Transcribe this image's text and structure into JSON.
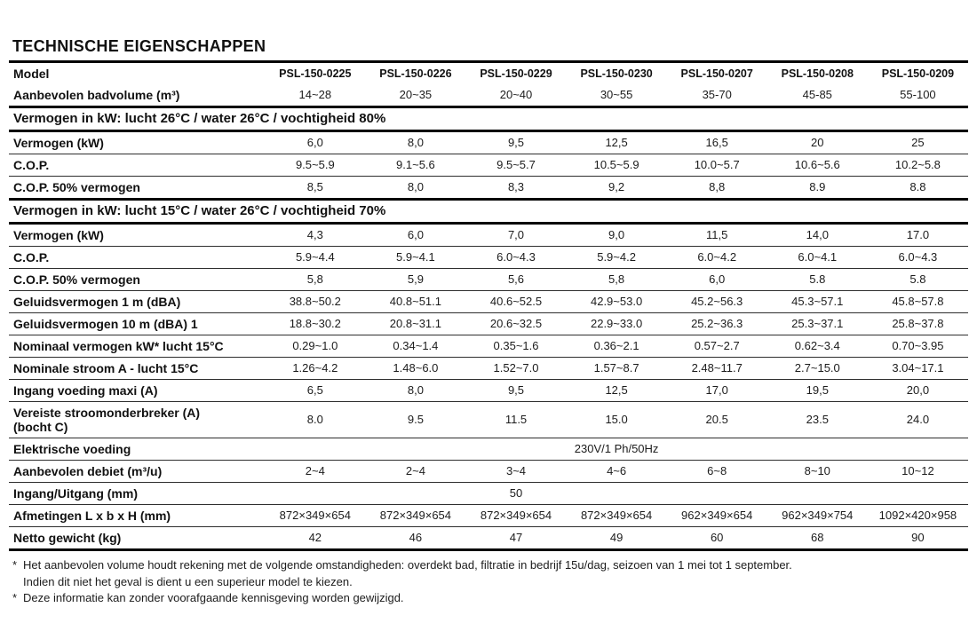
{
  "title": "TECHNISCHE EIGENSCHAPPEN",
  "table": {
    "model_label": "Model",
    "models": [
      "PSL-150-0225",
      "PSL-150-0226",
      "PSL-150-0229",
      "PSL-150-0230",
      "PSL-150-0207",
      "PSL-150-0208",
      "PSL-150-0209"
    ],
    "rows": [
      {
        "type": "data",
        "no_top": true,
        "label": "Aanbevolen badvolume (m³)",
        "values": [
          "14~28",
          "20~35",
          "20~40",
          "30~55",
          "35-70",
          "45-85",
          "55-100"
        ]
      },
      {
        "type": "section",
        "label": "Vermogen in kW: lucht 26°C / water 26°C / vochtigheid 80%"
      },
      {
        "type": "data",
        "label": "Vermogen (kW)",
        "values": [
          "6,0",
          "8,0",
          "9,5",
          "12,5",
          "16,5",
          "20",
          "25"
        ]
      },
      {
        "type": "data",
        "label": "C.O.P.",
        "values": [
          "9.5~5.9",
          "9.1~5.6",
          "9.5~5.7",
          "10.5~5.9",
          "10.0~5.7",
          "10.6~5.6",
          "10.2~5.8"
        ]
      },
      {
        "type": "data",
        "label": "C.O.P. 50% vermogen",
        "values": [
          "8,5",
          "8,0",
          "8,3",
          "9,2",
          "8,8",
          "8.9",
          "8.8"
        ]
      },
      {
        "type": "section",
        "label": "Vermogen in kW: lucht 15°C / water 26°C / vochtigheid 70%"
      },
      {
        "type": "data",
        "label": "Vermogen (kW)",
        "values": [
          "4,3",
          "6,0",
          "7,0",
          "9,0",
          "11,5",
          "14,0",
          "17.0"
        ]
      },
      {
        "type": "data",
        "label": "C.O.P.",
        "values": [
          "5.9~4.4",
          "5.9~4.1",
          "6.0~4.3",
          "5.9~4.2",
          "6.0~4.2",
          "6.0~4.1",
          "6.0~4.3"
        ]
      },
      {
        "type": "data",
        "label": "C.O.P. 50% vermogen",
        "values": [
          "5,8",
          "5,9",
          "5,6",
          "5,8",
          "6,0",
          "5.8",
          "5.8"
        ]
      },
      {
        "type": "data",
        "label": "Geluidsvermogen 1 m (dBA)",
        "values": [
          "38.8~50.2",
          "40.8~51.1",
          "40.6~52.5",
          "42.9~53.0",
          "45.2~56.3",
          "45.3~57.1",
          "45.8~57.8"
        ]
      },
      {
        "type": "data",
        "label": "Geluidsvermogen 10 m (dBA) 1",
        "values": [
          "18.8~30.2",
          "20.8~31.1",
          "20.6~32.5",
          "22.9~33.0",
          "25.2~36.3",
          "25.3~37.1",
          "25.8~37.8"
        ]
      },
      {
        "type": "data",
        "label": "Nominaal vermogen kW* lucht 15°C",
        "values": [
          "0.29~1.0",
          "0.34~1.4",
          "0.35~1.6",
          "0.36~2.1",
          "0.57~2.7",
          "0.62~3.4",
          "0.70~3.95"
        ]
      },
      {
        "type": "data",
        "label": "Nominale stroom A - lucht 15°C",
        "values": [
          "1.26~4.2",
          "1.48~6.0",
          "1.52~7.0",
          "1.57~8.7",
          "2.48~11.7",
          "2.7~15.0",
          "3.04~17.1"
        ]
      },
      {
        "type": "data",
        "label": "Ingang voeding maxi (A)",
        "values": [
          "6,5",
          "8,0",
          "9,5",
          "12,5",
          "17,0",
          "19,5",
          "20,0"
        ]
      },
      {
        "type": "data",
        "label": "Vereiste stroomonderbreker (A)",
        "label2": "(bocht C)",
        "values": [
          "8.0",
          "9.5",
          "11.5",
          "15.0",
          "20.5",
          "23.5",
          "24.0"
        ]
      },
      {
        "type": "data",
        "label": "Elektrische voeding",
        "values": [
          "",
          "",
          "",
          "230V/1 Ph/50Hz",
          "",
          "",
          ""
        ]
      },
      {
        "type": "data",
        "label": "Aanbevolen debiet (m³/u)",
        "values": [
          "2~4",
          "2~4",
          "3~4",
          "4~6",
          "6~8",
          "8~10",
          "10~12"
        ]
      },
      {
        "type": "data",
        "label": "Ingang/Uitgang (mm)",
        "values": [
          "",
          "",
          "50",
          "",
          "",
          "",
          ""
        ]
      },
      {
        "type": "data",
        "label": "Afmetingen L x b x H (mm)",
        "values": [
          "872×349×654",
          "872×349×654",
          "872×349×654",
          "872×349×654",
          "962×349×654",
          "962×349×754",
          "1092×420×958"
        ]
      },
      {
        "type": "data",
        "label": "Netto gewicht (kg)",
        "values": [
          "42",
          "46",
          "47",
          "49",
          "60",
          "68",
          "90"
        ]
      }
    ]
  },
  "footnotes": [
    {
      "marker": "*",
      "text": "Het aanbevolen volume houdt rekening met de volgende omstandigheden: overdekt bad, filtratie in bedrijf 15u/dag, seizoen van 1 mei tot 1 september."
    },
    {
      "marker": "",
      "text": "Indien dit niet het geval is dient u een superieur model te kiezen."
    },
    {
      "marker": "*",
      "text": "Deze informatie kan zonder voorafgaande kennisgeving worden gewijzigd."
    }
  ]
}
